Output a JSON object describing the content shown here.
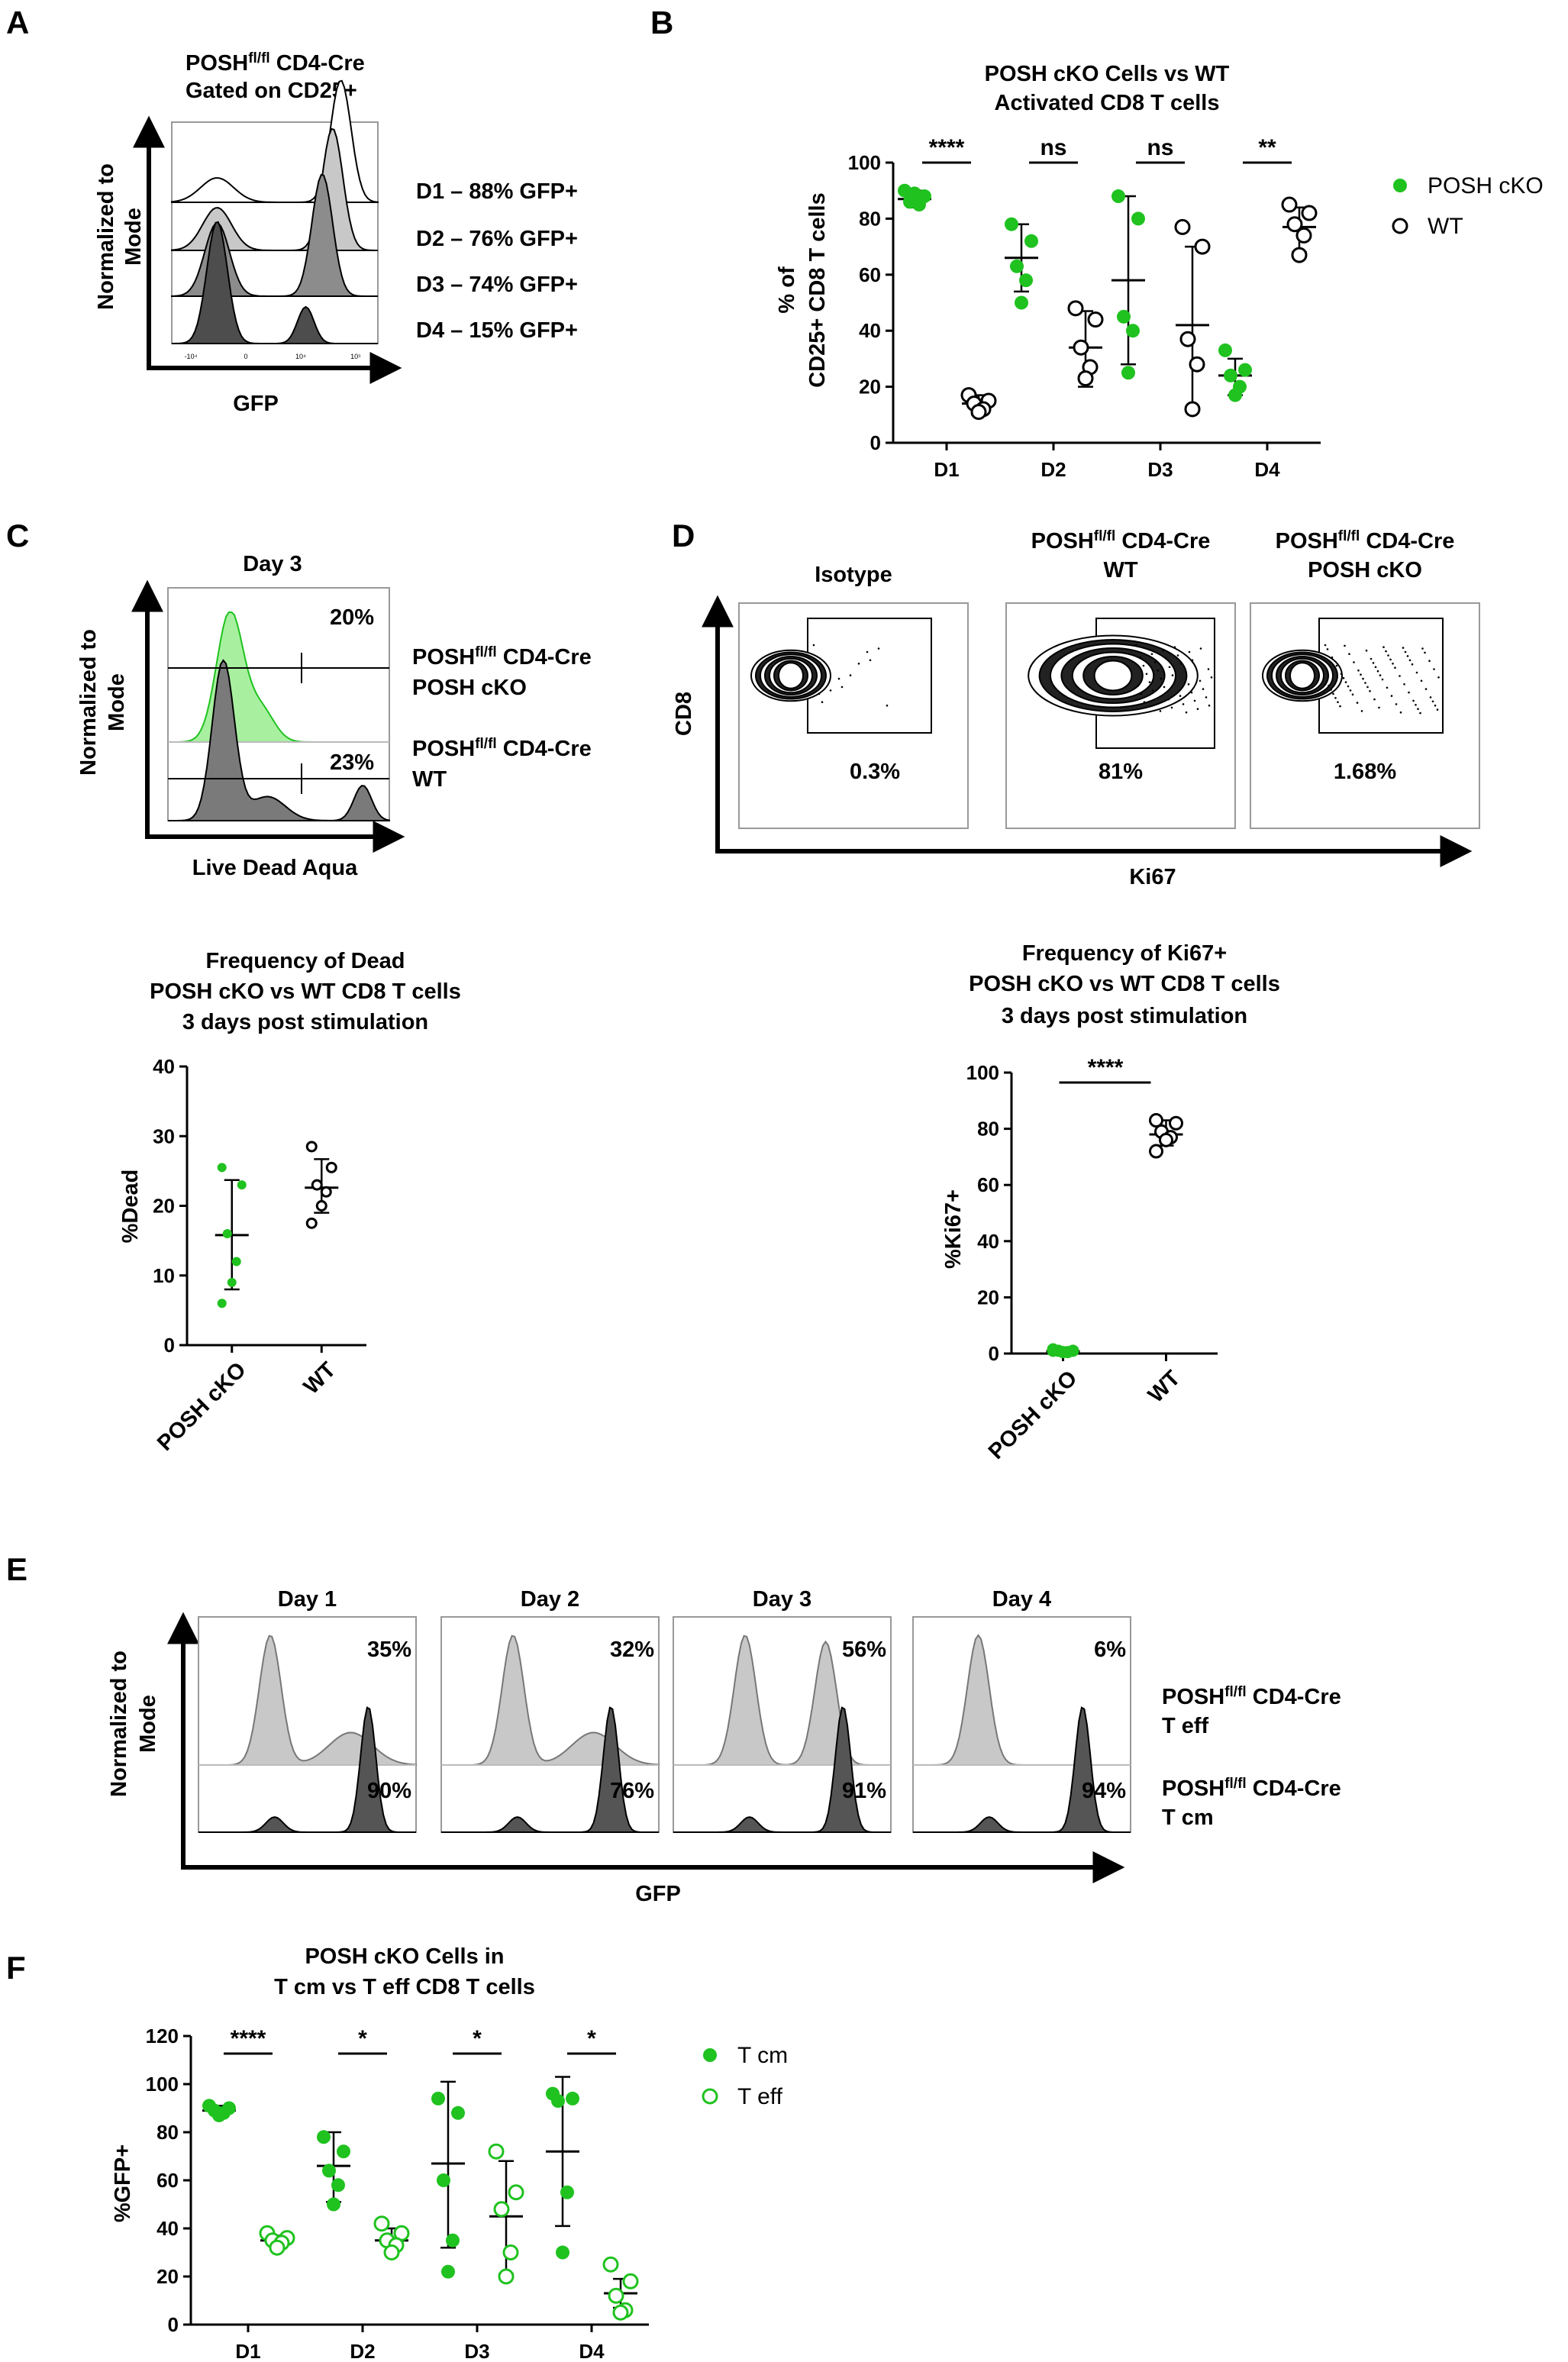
{
  "colors": {
    "green": "#1fc21f",
    "dark": "#000000",
    "hist_dark": "#4d4d4d",
    "hist_mid": "#8c8c8c",
    "hist_light": "#c8c8c8",
    "light_green": "#a8f0a0"
  },
  "panelA": {
    "letter": "A",
    "title1": "POSH",
    "title1_sup": "fl/fl",
    "title1_rest": " CD4-Cre",
    "title2": "Gated on CD25+",
    "ylabel1": "Normalized to",
    "ylabel2": "Mode",
    "xlabel": "GFP",
    "rows": [
      {
        "label": "D1 – 88% GFP+"
      },
      {
        "label": "D2 – 76% GFP+"
      },
      {
        "label": "D3 – 74% GFP+"
      },
      {
        "label": "D4 – 15% GFP+"
      }
    ],
    "tick_labels": [
      "-10⁴",
      "0",
      "10⁴",
      "10⁵"
    ]
  },
  "panelB": {
    "letter": "B",
    "title1": "POSH cKO Cells vs WT",
    "title2": "Activated CD8 T cells",
    "ylabel1": "% of",
    "ylabel2": "CD25+ CD8 T cells",
    "legend": [
      {
        "name": "POSH cKO"
      },
      {
        "name": "WT"
      }
    ]
  },
  "panelC": {
    "letter": "C",
    "title": "Day 3",
    "ylabel1": "Normalized to",
    "ylabel2": "Mode",
    "xlabel": "Live Dead Aqua",
    "pct_top": "20%",
    "pct_bottom": "23%",
    "label1a": "POSH",
    "label1sup": "fl/fl",
    "label1b": " CD4-Cre",
    "label1c": "POSH cKO",
    "label2a": "POSH",
    "label2sup": "fl/fl",
    "label2b": " CD4-Cre",
    "label2c": "WT"
  },
  "panelCbot": {
    "title1": "Frequency of Dead",
    "title2": "POSH cKO vs WT CD8 T cells",
    "title3": "3 days post stimulation",
    "ylabel": "%Dead"
  },
  "panelD": {
    "letter": "D",
    "plots": [
      {
        "title1": "Isotype",
        "title2": "",
        "pct": "0.3%"
      },
      {
        "title1": "POSH",
        "sup": "fl/fl",
        "title1b": " CD4-Cre",
        "title2": "WT",
        "pct": "81%"
      },
      {
        "title1": "POSH",
        "sup": "fl/fl",
        "title1b": " CD4-Cre",
        "title2": "POSH cKO",
        "pct": "1.68%"
      }
    ],
    "ylabel": "CD8",
    "xlabel": "Ki67"
  },
  "panelDbot": {
    "title1": "Frequency of Ki67+",
    "title2": "POSH cKO vs WT CD8 T cells",
    "title3": "3 days post stimulation",
    "ylabel": "%Ki67+"
  },
  "panelE": {
    "letter": "E",
    "days": [
      {
        "title": "Day 1",
        "top": "35%",
        "bottom": "90%"
      },
      {
        "title": "Day 2",
        "top": "32%",
        "bottom": "76%"
      },
      {
        "title": "Day 3",
        "top": "56%",
        "bottom": "91%"
      },
      {
        "title": "Day 4",
        "top": "6%",
        "bottom": "94%"
      }
    ],
    "ylabel1": "Normalized to",
    "ylabel2": "Mode",
    "xlabel": "GFP",
    "label1a": "POSH",
    "label1sup": "fl/fl",
    "label1b": " CD4-Cre",
    "label1c": "T eff",
    "label2a": "POSH",
    "label2sup": "fl/fl",
    "label2b": " CD4-Cre",
    "label2c": "T cm"
  },
  "panelF": {
    "letter": "F",
    "title1": "POSH cKO Cells in",
    "title2": "T cm vs T eff CD8 T cells",
    "ylabel": "%GFP+",
    "legend": [
      {
        "name": "T cm"
      },
      {
        "name": "T eff"
      }
    ]
  },
  "chart_data": [
    {
      "id": "B",
      "type": "scatter",
      "title": "POSH cKO Cells vs WT Activated CD8 T cells",
      "ylabel": "% of CD25+ CD8 T cells",
      "categories": [
        "D1",
        "D2",
        "D3",
        "D4"
      ],
      "ylim": [
        0,
        100
      ],
      "yticks": [
        0,
        20,
        40,
        60,
        80,
        100
      ],
      "series": [
        {
          "name": "POSH cKO",
          "filled": true,
          "points": [
            [
              90,
              88,
              86,
              85,
              89
            ],
            [
              78,
              72,
              63,
              58,
              50
            ],
            [
              88,
              80,
              45,
              40,
              25
            ],
            [
              33,
              26,
              24,
              20,
              17
            ]
          ],
          "mean": [
            87,
            66,
            58,
            24
          ],
          "err": [
            [
              84,
              90
            ],
            [
              54,
              78
            ],
            [
              28,
              88
            ],
            [
              17,
              30
            ]
          ]
        },
        {
          "name": "WT",
          "filled": false,
          "points": [
            [
              17,
              15,
              14,
              12,
              11
            ],
            [
              48,
              44,
              34,
              27,
              23
            ],
            [
              77,
              70,
              37,
              28,
              12
            ],
            [
              85,
              82,
              78,
              74,
              67
            ]
          ],
          "mean": [
            14,
            34,
            42,
            77
          ],
          "err": [
            [
              10,
              17
            ],
            [
              20,
              47
            ],
            [
              12,
              70
            ],
            [
              68,
              84
            ]
          ]
        }
      ],
      "sig": [
        "****",
        "ns",
        "ns",
        "**"
      ]
    },
    {
      "id": "C-bottom",
      "type": "scatter",
      "title": "Frequency of Dead POSH cKO vs WT CD8 T cells 3 days post stimulation",
      "ylabel": "%Dead",
      "categories": [
        "POSH cKO",
        "WT"
      ],
      "ylim": [
        0,
        40
      ],
      "yticks": [
        0,
        10,
        20,
        30,
        40
      ],
      "series": [
        {
          "name": "POSH cKO",
          "filled": true,
          "points": [
            25.5,
            23,
            16,
            12,
            9,
            6
          ],
          "mean": 15.8,
          "err": [
            8,
            23.7
          ]
        },
        {
          "name": "WT",
          "filled": false,
          "points": [
            28.5,
            25.5,
            23,
            22,
            20,
            17.5
          ],
          "mean": 22.6,
          "err": [
            19,
            26.7
          ]
        }
      ]
    },
    {
      "id": "D-bottom",
      "type": "scatter",
      "title": "Frequency of Ki67+ POSH cKO vs WT CD8 T cells 3 days post stimulation",
      "ylabel": "%Ki67+",
      "categories": [
        "POSH cKO",
        "WT"
      ],
      "ylim": [
        0,
        100
      ],
      "yticks": [
        0,
        20,
        40,
        60,
        80,
        100
      ],
      "series": [
        {
          "name": "POSH cKO",
          "filled": true,
          "points": [
            1.5,
            1,
            1,
            0.5,
            0.5,
            1
          ],
          "mean": 0.8,
          "err": [
            0.3,
            1.6
          ]
        },
        {
          "name": "WT",
          "filled": false,
          "points": [
            83,
            82,
            79,
            77,
            76,
            72
          ],
          "mean": 78,
          "err": [
            74,
            83
          ]
        }
      ],
      "sig": "****"
    },
    {
      "id": "F",
      "type": "scatter",
      "title": "POSH cKO Cells in T cm vs T eff CD8 T cells",
      "ylabel": "%GFP+",
      "categories": [
        "D1",
        "D2",
        "D3",
        "D4"
      ],
      "ylim": [
        0,
        120
      ],
      "yticks": [
        0,
        20,
        40,
        60,
        80,
        100,
        120
      ],
      "series": [
        {
          "name": "T cm",
          "filled": true,
          "points": [
            [
              91,
              90,
              89,
              88,
              87
            ],
            [
              78,
              72,
              64,
              58,
              50
            ],
            [
              94,
              88,
              60,
              35,
              22
            ],
            [
              96,
              94,
              93,
              55,
              30
            ]
          ],
          "mean": [
            89,
            66,
            67,
            72
          ],
          "err": [
            [
              87,
              91
            ],
            [
              51,
              80
            ],
            [
              32,
              101
            ],
            [
              41,
              103
            ]
          ]
        },
        {
          "name": "T eff",
          "filled": false,
          "points": [
            [
              38,
              36,
              35,
              34,
              32
            ],
            [
              42,
              38,
              35,
              33,
              30
            ],
            [
              72,
              55,
              48,
              30,
              20
            ],
            [
              25,
              18,
              12,
              6,
              5
            ]
          ],
          "mean": [
            35,
            35,
            45,
            13
          ],
          "err": [
            [
              32,
              37
            ],
            [
              30,
              40
            ],
            [
              21,
              68
            ],
            [
              7,
              19
            ]
          ]
        }
      ],
      "sig": [
        "****",
        "*",
        "*",
        "*"
      ]
    }
  ]
}
